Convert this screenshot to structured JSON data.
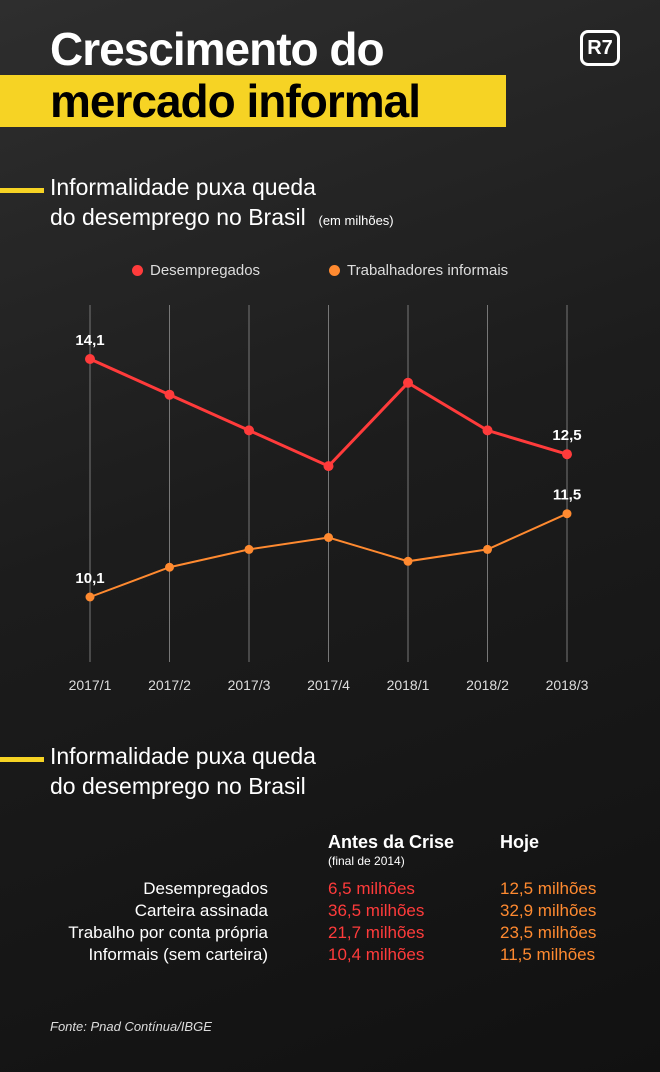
{
  "header": {
    "title_line1": "Crescimento do",
    "title_line2": "mercado informal",
    "logo": "R7"
  },
  "section1": {
    "title_line1": "Informalidade puxa queda",
    "title_line2": "do desemprego no Brasil",
    "unit": "(em milhões)"
  },
  "chart_data": {
    "type": "line",
    "title": "Informalidade puxa queda do desemprego no Brasil",
    "unit": "(em milhões)",
    "categories": [
      "2017/1",
      "2017/2",
      "2017/3",
      "2017/4",
      "2018/1",
      "2018/2",
      "2018/3"
    ],
    "series": [
      {
        "name": "Desempregados",
        "color": "#ff3b3b",
        "values": [
          14.1,
          13.5,
          12.9,
          12.3,
          13.7,
          12.9,
          12.5
        ],
        "labels": {
          "0": "14,1",
          "6": "12,5"
        }
      },
      {
        "name": "Trabalhadores informais",
        "color": "#ff8a30",
        "values": [
          10.1,
          10.6,
          10.9,
          11.1,
          10.7,
          10.9,
          11.5
        ],
        "labels": {
          "0": "10,1",
          "6": "11,5"
        }
      }
    ],
    "legend": "top",
    "grid": "vertical"
  },
  "section2": {
    "title_line1": "Informalidade puxa queda",
    "title_line2": "do desemprego no Brasil"
  },
  "table": {
    "col1_header": "Antes da Crise",
    "col1_sub": "(final de 2014)",
    "col2_header": "Hoje",
    "rows": [
      {
        "label": "Desempregados",
        "before": "6,5 milhões",
        "now": "12,5 milhões"
      },
      {
        "label": "Carteira assinada",
        "before": "36,5 milhões",
        "now": "32,9 milhões"
      },
      {
        "label": "Trabalho por conta própria",
        "before": "21,7 milhões",
        "now": "23,5 milhões"
      },
      {
        "label": "Informais (sem carteira)",
        "before": "10,4 milhões",
        "now": "11,5 milhões"
      }
    ]
  },
  "source": "Fonte: Pnad Contínua/IBGE"
}
